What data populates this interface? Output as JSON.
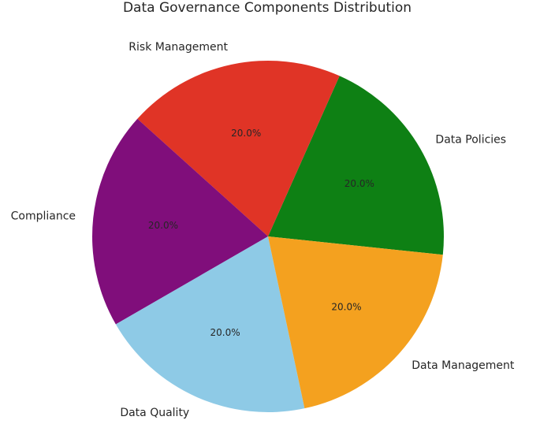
{
  "chart_data": {
    "type": "pie",
    "title": "Data Governance Components Distribution",
    "slices": [
      {
        "label": "Data Policies",
        "value": 20,
        "percent_label": "20.0%",
        "color": "#0e8014"
      },
      {
        "label": "Risk Management",
        "value": 20,
        "percent_label": "20.0%",
        "color": "#e03426"
      },
      {
        "label": "Compliance",
        "value": 20,
        "percent_label": "20.0%",
        "color": "#800e7b"
      },
      {
        "label": "Data Quality",
        "value": 20,
        "percent_label": "20.0%",
        "color": "#8ecae6"
      },
      {
        "label": "Data Management",
        "value": 20,
        "percent_label": "20.0%",
        "color": "#f4a11f"
      }
    ],
    "legend": "none"
  }
}
